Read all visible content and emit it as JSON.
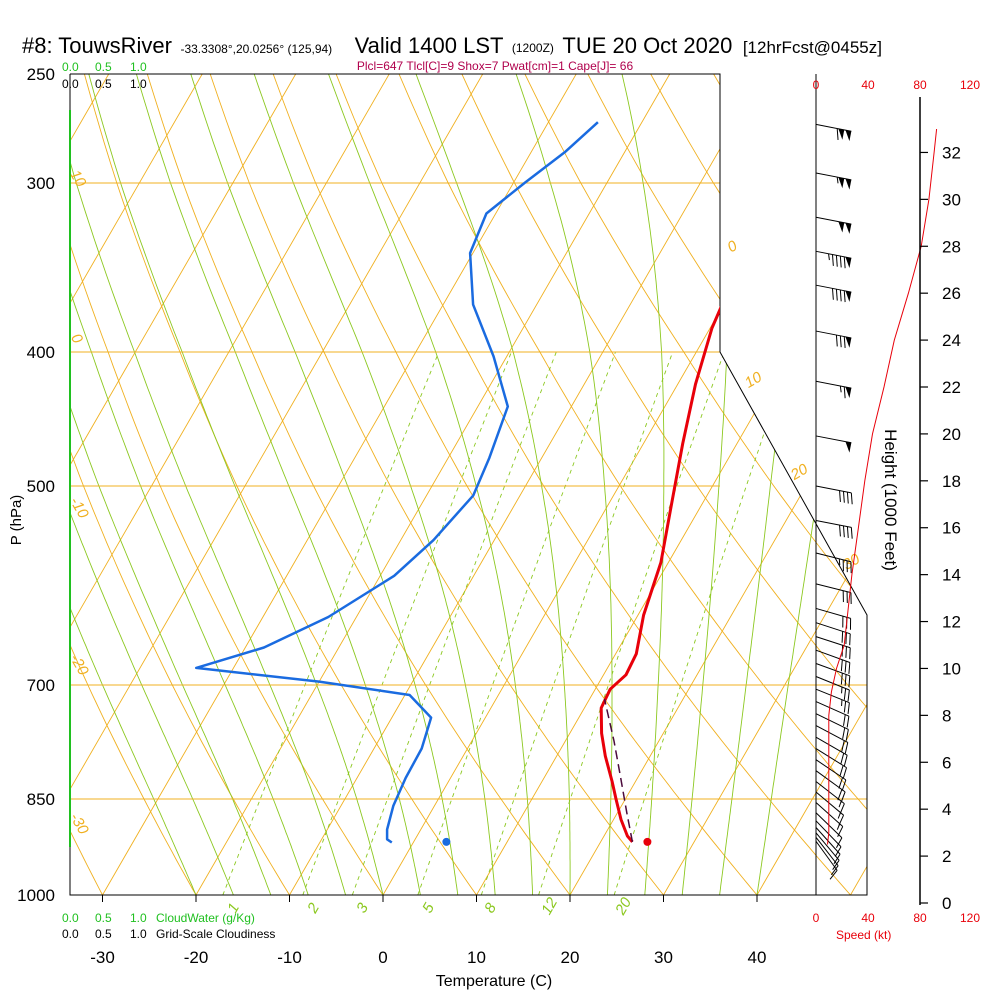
{
  "header": {
    "station": "#8: TouwsRiver",
    "coords": "-33.3308°,20.0256° (125,94)",
    "valid_prefix": "Valid 1400 LST",
    "valid_utc": "(1200Z)",
    "valid_date": "TUE 20 Oct 2020",
    "forecast": "[12hrFcst@0455z]",
    "indices": "Plcl=647 Tlcl[C]=9 Shox=7 Pwat[cm]=1 Cape[J]= 66"
  },
  "colors": {
    "temperature": "#e8000a",
    "dewpoint": "#1a6be0",
    "parcel": "#4b0a3c",
    "isotherm": "#f0b020",
    "dry_adiabat": "#f0b020",
    "moist_adiabat": "#8cc820",
    "mixing_ratio": "#8cc820",
    "cloudwater": "#20c020",
    "speed": "#e8000a",
    "indices_text": "#b0004c",
    "wind_barb": "#000000",
    "border": "#000000"
  },
  "left_axis": {
    "label": "P (hPa)",
    "ticks": [
      "250",
      "300",
      "400",
      "500",
      "700",
      "850",
      "1000"
    ]
  },
  "bottom_axis": {
    "label": "Temperature (C)",
    "ticks": [
      "-30",
      "-20",
      "-10",
      "0",
      "10",
      "20",
      "30",
      "40"
    ]
  },
  "right_axis": {
    "label": "Height (1000 Feet)",
    "ticks": [
      "0",
      "2",
      "4",
      "6",
      "8",
      "10",
      "12",
      "14",
      "16",
      "18",
      "20",
      "22",
      "24",
      "26",
      "28",
      "30",
      "32"
    ]
  },
  "cloud_scale": {
    "top_green": [
      "0.0",
      "0.5",
      "1.0"
    ],
    "top_black": [
      "0.0",
      "0.5",
      "1.0"
    ],
    "bottom_green": [
      "0.0",
      "0.5",
      "1.0"
    ],
    "bottom_black": [
      "0.0",
      "0.5",
      "1.0"
    ],
    "cloudwater_label": "CloudWater (g/Kg)",
    "cloudiness_label": "Grid-Scale Cloudiness"
  },
  "speed_scale": {
    "top": [
      "0",
      "40",
      "80",
      "120"
    ],
    "bottom": [
      "0",
      "40",
      "80",
      "120"
    ],
    "label": "Speed (kt)"
  },
  "isotherm_labels": {
    "left": [
      "10",
      "0",
      "-10",
      "-20",
      "-30"
    ],
    "right": [
      "0",
      "10",
      "20",
      "30"
    ]
  },
  "mixing_ratio_labels": [
    "1",
    "2",
    "3",
    "5",
    "8",
    "12",
    "20"
  ],
  "chart_data": {
    "type": "line",
    "title": "#8: TouwsRiver -33.3308°,20.0256° (125,94) Valid 1400 LST (1200Z) TUE 20 Oct 2020 [12hrFcst@0455z]",
    "xlabel": "Temperature (C)",
    "ylabel": "P (hPa)",
    "y2label": "Height (1000 Feet)",
    "xlim": [
      -34,
      36
    ],
    "ylim_hpa": [
      1000,
      250
    ],
    "log_pressure_axis": true,
    "grid": true,
    "series": [
      {
        "points": [
          {
            "x": 23.4,
            "y": 914
          },
          {
            "x": 22.5,
            "y": 905
          },
          {
            "x": 20.8,
            "y": 880
          },
          {
            "x": 19.0,
            "y": 850
          },
          {
            "x": 17.5,
            "y": 825
          },
          {
            "x": 15.2,
            "y": 790
          },
          {
            "x": 13.4,
            "y": 760
          },
          {
            "x": 11.8,
            "y": 728
          },
          {
            "x": 11.6,
            "y": 705
          },
          {
            "x": 12.4,
            "y": 688
          },
          {
            "x": 12.2,
            "y": 664
          },
          {
            "x": 10.6,
            "y": 622
          },
          {
            "x": 9.2,
            "y": 569
          },
          {
            "x": 6.9,
            "y": 519
          },
          {
            "x": 4.2,
            "y": 466
          },
          {
            "x": 1.9,
            "y": 422
          },
          {
            "x": 0.2,
            "y": 384
          },
          {
            "x": -0.7,
            "y": 348
          },
          {
            "x": -1.6,
            "y": 318
          },
          {
            "x": -2.5,
            "y": 293
          },
          {
            "x": -3.2,
            "y": 272
          }
        ]
      },
      {
        "points": [
          {
            "x": -2.3,
            "y": 915
          },
          {
            "x": -3.0,
            "y": 910
          },
          {
            "x": -3.6,
            "y": 895
          },
          {
            "x": -4.4,
            "y": 860
          },
          {
            "x": -4.8,
            "y": 820
          },
          {
            "x": -4.9,
            "y": 780
          },
          {
            "x": -5.8,
            "y": 740
          },
          {
            "x": -9.5,
            "y": 712
          },
          {
            "x": -20.0,
            "y": 696
          },
          {
            "x": -34.0,
            "y": 680
          },
          {
            "x": -28.0,
            "y": 657
          },
          {
            "x": -23.0,
            "y": 624
          },
          {
            "x": -18.5,
            "y": 582
          },
          {
            "x": -16.5,
            "y": 548
          },
          {
            "x": -15.0,
            "y": 508
          },
          {
            "x": -15.6,
            "y": 477
          },
          {
            "x": -16.8,
            "y": 438
          },
          {
            "x": -21.4,
            "y": 403
          },
          {
            "x": -26.8,
            "y": 369
          },
          {
            "x": -30.3,
            "y": 338
          },
          {
            "x": -31.0,
            "y": 316
          },
          {
            "x": -28.8,
            "y": 300
          },
          {
            "x": -26.4,
            "y": 285
          },
          {
            "x": -24.7,
            "y": 271
          }
        ]
      },
      {
        "points": [
          {
            "x": 23.4,
            "y": 914
          },
          {
            "x": 21.0,
            "y": 870
          },
          {
            "x": 18.2,
            "y": 820
          },
          {
            "x": 15.2,
            "y": 770
          },
          {
            "x": 11.6,
            "y": 717
          }
        ]
      }
    ],
    "surface_points": [
      {
        "x": 25.0,
        "y": 914
      },
      {
        "x": 3.5,
        "y": 914
      }
    ],
    "wind_speed_kt": [
      {
        "height_kft": 2.5,
        "speed": 9
      },
      {
        "height_kft": 3,
        "speed": 10
      },
      {
        "height_kft": 5,
        "speed": 10
      },
      {
        "height_kft": 8,
        "speed": 10
      },
      {
        "height_kft": 9,
        "speed": 12
      },
      {
        "height_kft": 10,
        "speed": 16
      },
      {
        "height_kft": 11,
        "speed": 22
      },
      {
        "height_kft": 12,
        "speed": 24
      },
      {
        "height_kft": 14,
        "speed": 28
      },
      {
        "height_kft": 16,
        "speed": 33
      },
      {
        "height_kft": 18,
        "speed": 38
      },
      {
        "height_kft": 20,
        "speed": 44
      },
      {
        "height_kft": 22,
        "speed": 53
      },
      {
        "height_kft": 24,
        "speed": 61
      },
      {
        "height_kft": 26,
        "speed": 72
      },
      {
        "height_kft": 28,
        "speed": 82
      },
      {
        "height_kft": 30,
        "speed": 88
      },
      {
        "height_kft": 32,
        "speed": 92
      },
      {
        "height_kft": 33,
        "speed": 94
      }
    ],
    "wind_barbs": [
      {
        "p": 272,
        "dir": 281,
        "speed": 110
      },
      {
        "p": 295,
        "dir": 281,
        "speed": 105
      },
      {
        "p": 318,
        "dir": 281,
        "speed": 100
      },
      {
        "p": 337,
        "dir": 281,
        "speed": 95
      },
      {
        "p": 357,
        "dir": 281,
        "speed": 90
      },
      {
        "p": 386,
        "dir": 281,
        "speed": 80
      },
      {
        "p": 420,
        "dir": 281,
        "speed": 65
      },
      {
        "p": 460,
        "dir": 281,
        "speed": 50
      },
      {
        "p": 500,
        "dir": 281,
        "speed": 42
      },
      {
        "p": 530,
        "dir": 281,
        "speed": 40
      },
      {
        "p": 560,
        "dir": 284,
        "speed": 35
      },
      {
        "p": 590,
        "dir": 284,
        "speed": 32
      },
      {
        "p": 615,
        "dir": 286,
        "speed": 30
      },
      {
        "p": 630,
        "dir": 288,
        "speed": 30
      },
      {
        "p": 645,
        "dir": 288,
        "speed": 30
      },
      {
        "p": 660,
        "dir": 290,
        "speed": 28
      },
      {
        "p": 675,
        "dir": 290,
        "speed": 28
      },
      {
        "p": 690,
        "dir": 292,
        "speed": 25
      },
      {
        "p": 705,
        "dir": 292,
        "speed": 25
      },
      {
        "p": 720,
        "dir": 294,
        "speed": 22
      },
      {
        "p": 735,
        "dir": 296,
        "speed": 22
      },
      {
        "p": 750,
        "dir": 298,
        "speed": 20
      },
      {
        "p": 765,
        "dir": 300,
        "speed": 20
      },
      {
        "p": 780,
        "dir": 302,
        "speed": 18
      },
      {
        "p": 795,
        "dir": 304,
        "speed": 18
      },
      {
        "p": 810,
        "dir": 306,
        "speed": 18
      },
      {
        "p": 825,
        "dir": 308,
        "speed": 15
      },
      {
        "p": 840,
        "dir": 310,
        "speed": 15
      },
      {
        "p": 855,
        "dir": 312,
        "speed": 15
      },
      {
        "p": 870,
        "dir": 314,
        "speed": 12
      },
      {
        "p": 882,
        "dir": 316,
        "speed": 12
      },
      {
        "p": 892,
        "dir": 318,
        "speed": 10
      },
      {
        "p": 900,
        "dir": 320,
        "speed": 10
      },
      {
        "p": 907,
        "dir": 322,
        "speed": 10
      },
      {
        "p": 913,
        "dir": 324,
        "speed": 10
      }
    ]
  }
}
